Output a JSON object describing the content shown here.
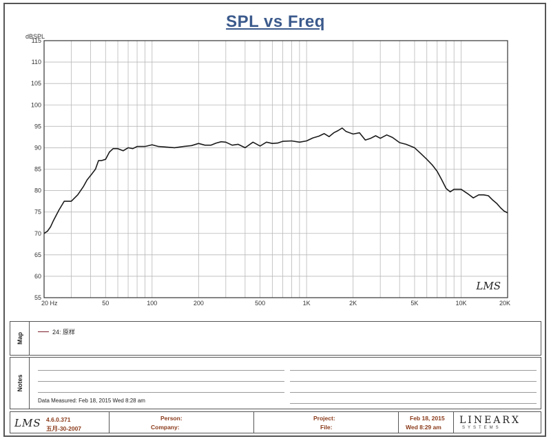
{
  "title": "SPL vs Freq",
  "chart_data": {
    "type": "line",
    "ylabel": "dBSPL",
    "xscale": "log",
    "xlim": [
      20,
      20000
    ],
    "ylim": [
      55,
      115
    ],
    "yticks": [
      55,
      60,
      65,
      70,
      75,
      80,
      85,
      90,
      95,
      100,
      105,
      110,
      115
    ],
    "xtick_values": [
      20,
      50,
      100,
      200,
      500,
      1000,
      2000,
      5000,
      10000,
      20000
    ],
    "xtick_labels": [
      "20 Hz",
      "50",
      "100",
      "200",
      "500",
      "1K",
      "2K",
      "5K",
      "10K",
      "20K"
    ],
    "grid": true,
    "watermark": "LMS",
    "series": [
      {
        "name": "24: 原样",
        "color": "#1a1a1a",
        "x": [
          20,
          21,
          22,
          23,
          25,
          27,
          30,
          33,
          36,
          38,
          40,
          43,
          45,
          47,
          50,
          53,
          56,
          60,
          65,
          70,
          75,
          80,
          90,
          100,
          110,
          120,
          140,
          160,
          180,
          200,
          220,
          240,
          260,
          280,
          300,
          330,
          360,
          400,
          450,
          500,
          550,
          600,
          650,
          700,
          800,
          900,
          1000,
          1100,
          1200,
          1300,
          1400,
          1500,
          1600,
          1700,
          1800,
          2000,
          2200,
          2400,
          2600,
          2800,
          3000,
          3300,
          3600,
          4000,
          4400,
          5000,
          5500,
          6000,
          6500,
          7000,
          7500,
          8000,
          8500,
          9000,
          10000,
          11000,
          12000,
          13000,
          14000,
          15000,
          16000,
          17000,
          18000,
          19000,
          20000
        ],
        "y": [
          70,
          70.5,
          71.5,
          73,
          75.5,
          77.5,
          77.5,
          79,
          81,
          82.5,
          83.5,
          85,
          87,
          87,
          87.3,
          89,
          89.8,
          89.8,
          89.3,
          90,
          89.8,
          90.3,
          90.3,
          90.7,
          90.3,
          90.2,
          90,
          90.3,
          90.5,
          91,
          90.6,
          90.6,
          91.1,
          91.4,
          91.3,
          90.6,
          90.8,
          90,
          91.3,
          90.4,
          91.3,
          91,
          91.1,
          91.5,
          91.6,
          91.3,
          91.6,
          92.3,
          92.7,
          93.3,
          92.6,
          93.5,
          94,
          94.6,
          93.8,
          93.2,
          93.5,
          91.8,
          92.2,
          92.8,
          92.2,
          93,
          92.4,
          91.2,
          90.8,
          90,
          88.6,
          87.3,
          86,
          84.5,
          82.5,
          80.5,
          79.7,
          80.3,
          80.3,
          79.3,
          78.3,
          79,
          79,
          78.8,
          77.8,
          77,
          76,
          75.2,
          74.8
        ]
      }
    ]
  },
  "map": {
    "section_label": "Map",
    "legend_label": "24: 原样"
  },
  "notes": {
    "section_label": "Notes",
    "measured": "Data Measured: Feb 18, 2015  Wed  8:28 am"
  },
  "footer": {
    "logo": "LMS",
    "version": "4.6.0.371",
    "version_date": "五月-30-2007",
    "person_label": "Person:",
    "company_label": "Company:",
    "project_label": "Project:",
    "file_label": "File:",
    "date": "Feb 18, 2015",
    "time": "Wed  8:29 am",
    "brand": "LINEARX",
    "brand_sub": "SYSTEMS"
  }
}
